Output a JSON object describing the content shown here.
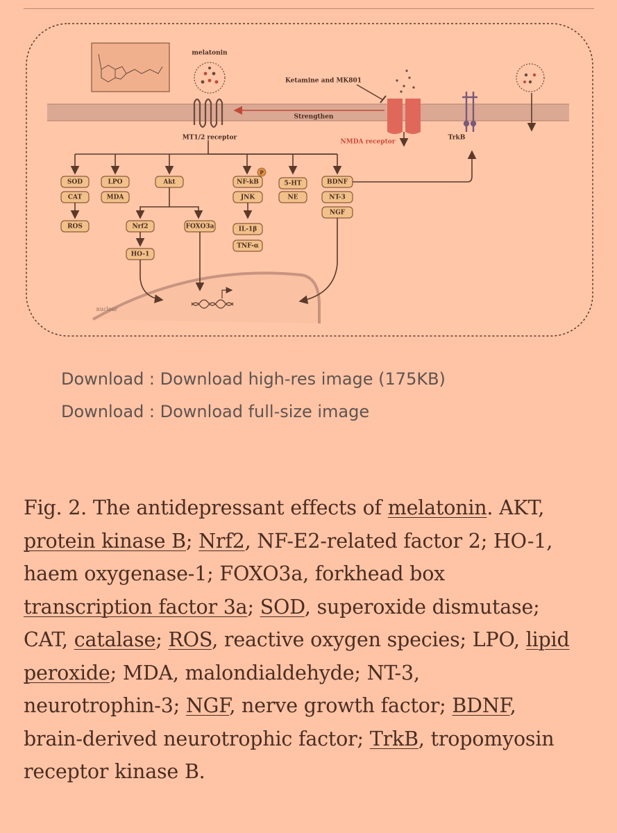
{
  "figure": {
    "labels": {
      "melatonin": "melatonin",
      "ketamine": "Ketamine and MK801",
      "strengthen": "Strengthen",
      "mt_receptor": "MT1/2 receptor",
      "nmda_receptor": "NMDA receptor",
      "trkb": "TrkB",
      "nuclear": "nuclear",
      "p_badge": "P"
    },
    "nodes": {
      "sod": "SOD",
      "cat": "CAT",
      "ros": "ROS",
      "lpo": "LPO",
      "mda": "MDA",
      "akt": "Akt",
      "nrf2": "Nrf2",
      "ho1": "HO-1",
      "foxo3a": "FOXO3a",
      "nfkb": "NF-kB",
      "jnk": "JNK",
      "il1b": "IL-1β",
      "tnfa": "TNF-α",
      "ht5": "5-HT",
      "ne": "NE",
      "bdnf": "BDNF",
      "nt3": "NT-3",
      "ngf": "NGF"
    }
  },
  "downloads": {
    "high_res": "Download : Download high-res image (175KB)",
    "full_size": "Download : Download full-size image"
  },
  "caption": {
    "l1a": "Fig. 2. The antidepressant effects of ",
    "l1_link": "melatonin",
    "l1b": ". AKT,",
    "l2_link1": "protein kinase B",
    "l2a": "; ",
    "l2_link2": "Nrf2",
    "l2b": ", NF-E2-related factor 2; HO-1,",
    "l3": "haem oxygenase-1; FOXO3a, forkhead box",
    "l4_link1": "transcription factor 3a",
    "l4a": "; ",
    "l4_link2": "SOD",
    "l4b": ", superoxide dismutase;",
    "l5a": "CAT, ",
    "l5_link1": "catalase",
    "l5b": "; ",
    "l5_link2": "ROS",
    "l5c": ", reactive oxygen species; LPO, ",
    "l5_link3": "lipid",
    "l6_link": "peroxide",
    "l6a": "; MDA, malondialdehyde; NT-3,",
    "l7a": "neurotrophin-3; ",
    "l7_link1": "NGF",
    "l7b": ", nerve growth factor; ",
    "l7_link2": "BDNF",
    "l7c": ",",
    "l8a": "brain-derived neurotrophic factor; ",
    "l8_link": "TrkB",
    "l8b": ", tropomyosin",
    "l9": "receptor kinase B."
  },
  "colors": {
    "background": "#ffc3a5",
    "node_fill": "#f2c089",
    "nmda_red": "#e0685a",
    "membrane": "#c79a8c"
  }
}
